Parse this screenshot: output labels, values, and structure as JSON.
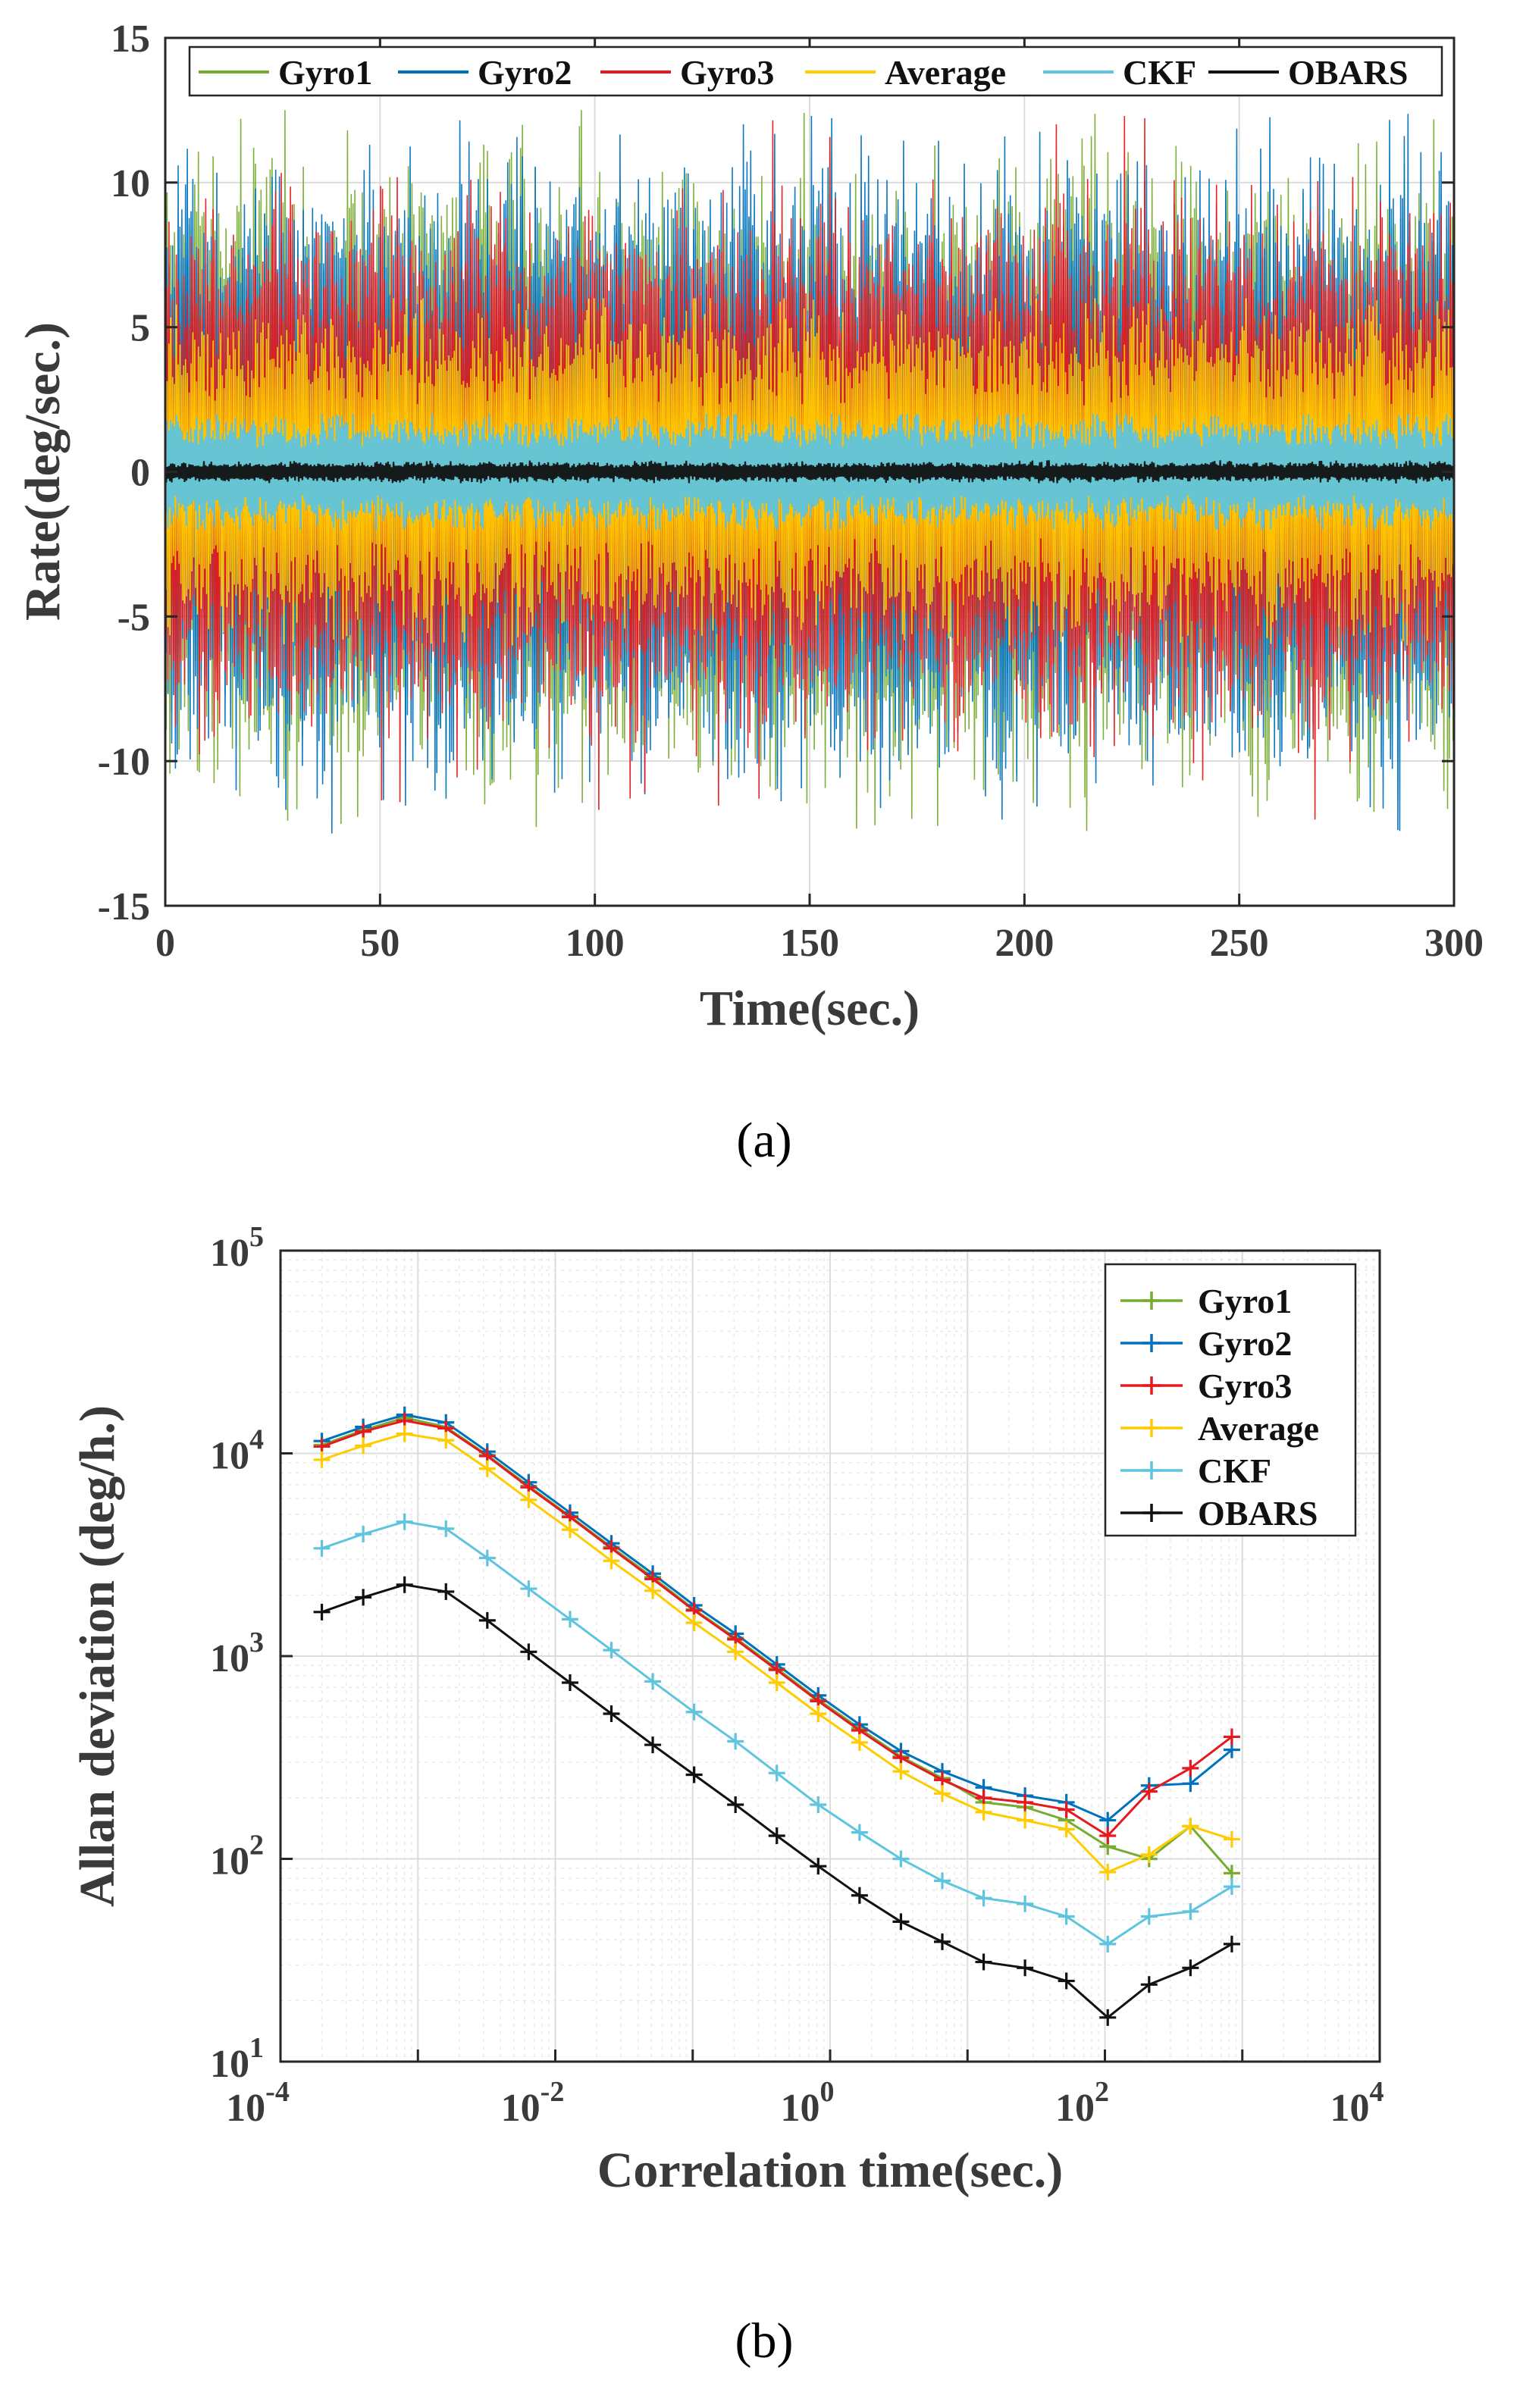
{
  "figure_captions": [
    "(a)",
    "(b)"
  ],
  "chart_data": [
    {
      "type": "line",
      "panel": "(a)",
      "xlabel": "Time(sec.)",
      "ylabel": "Rate(deg/sec.)",
      "xlim": [
        0,
        300
      ],
      "ylim": [
        -15,
        15
      ],
      "xticks": [
        0,
        50,
        100,
        150,
        200,
        250,
        300
      ],
      "yticks": [
        -15,
        -10,
        -5,
        0,
        5,
        10,
        15
      ],
      "grid": true,
      "legend_position": "top",
      "legend": [
        "Gyro1",
        "Gyro2",
        "Gyro3",
        "Average",
        "CKF",
        "OBARS"
      ],
      "series": [
        {
          "name": "Gyro1",
          "color": "#77AC30",
          "signal": "zero-mean noise",
          "typical_amplitude": 7.5,
          "peak_amplitude": 12.5
        },
        {
          "name": "Gyro2",
          "color": "#0072BD",
          "signal": "zero-mean noise",
          "typical_amplitude": 7.5,
          "peak_amplitude": 12.5
        },
        {
          "name": "Gyro3",
          "color": "#E5191E",
          "signal": "zero-mean noise",
          "typical_amplitude": 6.5,
          "peak_amplitude": 12.5
        },
        {
          "name": "Average",
          "color": "#FFCC00",
          "signal": "zero-mean noise",
          "typical_amplitude": 4,
          "peak_amplitude": 6
        },
        {
          "name": "CKF",
          "color": "#5FC4DD",
          "signal": "zero-mean noise",
          "typical_amplitude": 1.4,
          "peak_amplitude": 2
        },
        {
          "name": "OBARS",
          "color": "#111111",
          "signal": "zero-mean noise",
          "typical_amplitude": 0.25,
          "peak_amplitude": 0.4
        }
      ]
    },
    {
      "type": "line",
      "panel": "(b)",
      "xscale": "log",
      "yscale": "log",
      "xlabel": "Correlation time(sec.)",
      "ylabel": "Allan deviation (deg/h.)",
      "xlim_exp": [
        -4,
        4
      ],
      "ylim_exp": [
        1,
        5
      ],
      "xtick_exponents": [
        "-4",
        "-2",
        "0",
        "2",
        "4"
      ],
      "ytick_exponents": [
        "1",
        "2",
        "3",
        "4",
        "5"
      ],
      "tick_base": "10",
      "grid": true,
      "legend_position": "top-right",
      "legend": [
        "Gyro1",
        "Gyro2",
        "Gyro3",
        "Average",
        "CKF",
        "OBARS"
      ],
      "x": [
        0.0002,
        0.0004,
        0.0008,
        0.0016,
        0.0032,
        0.0064,
        0.0128,
        0.0256,
        0.0512,
        0.1024,
        0.2048,
        0.4096,
        0.8192,
        1.6384,
        3.2768,
        6.5536,
        13.107,
        26.214,
        52.429,
        104.86,
        209.72,
        419.43,
        838.86
      ],
      "series": [
        {
          "name": "Gyro1",
          "color": "#77AC30",
          "values": [
            11000,
            13000,
            15000,
            13500,
            9800,
            6900,
            4900,
            3450,
            2450,
            1700,
            1230,
            870,
            610,
            440,
            320,
            250,
            190,
            180,
            155,
            115,
            100,
            145,
            85
          ]
        },
        {
          "name": "Gyro2",
          "color": "#0072BD",
          "values": [
            11500,
            13500,
            15500,
            14200,
            10200,
            7200,
            5100,
            3600,
            2550,
            1780,
            1290,
            910,
            640,
            460,
            340,
            270,
            225,
            205,
            190,
            155,
            230,
            235,
            345
          ]
        },
        {
          "name": "Gyro3",
          "color": "#E5191E",
          "values": [
            10800,
            12800,
            14500,
            13300,
            9700,
            6800,
            4850,
            3400,
            2400,
            1680,
            1210,
            855,
            600,
            430,
            315,
            245,
            200,
            190,
            175,
            130,
            215,
            280,
            400
          ]
        },
        {
          "name": "Average",
          "color": "#FFCC00",
          "values": [
            9300,
            10900,
            12500,
            11600,
            8400,
            5900,
            4200,
            2950,
            2100,
            1460,
            1050,
            740,
            520,
            375,
            270,
            210,
            170,
            155,
            140,
            86,
            105,
            145,
            125
          ]
        },
        {
          "name": "CKF",
          "color": "#5FC4DD",
          "values": [
            3400,
            4000,
            4600,
            4250,
            3050,
            2150,
            1520,
            1070,
            750,
            530,
            380,
            265,
            185,
            135,
            100,
            78,
            64,
            60,
            52,
            38,
            52,
            55,
            73
          ]
        },
        {
          "name": "OBARS",
          "color": "#111111",
          "values": [
            1650,
            1950,
            2250,
            2080,
            1500,
            1050,
            740,
            520,
            365,
            260,
            185,
            130,
            92,
            66,
            49,
            39,
            31,
            29,
            25,
            16.5,
            24,
            29,
            38
          ]
        }
      ]
    }
  ]
}
